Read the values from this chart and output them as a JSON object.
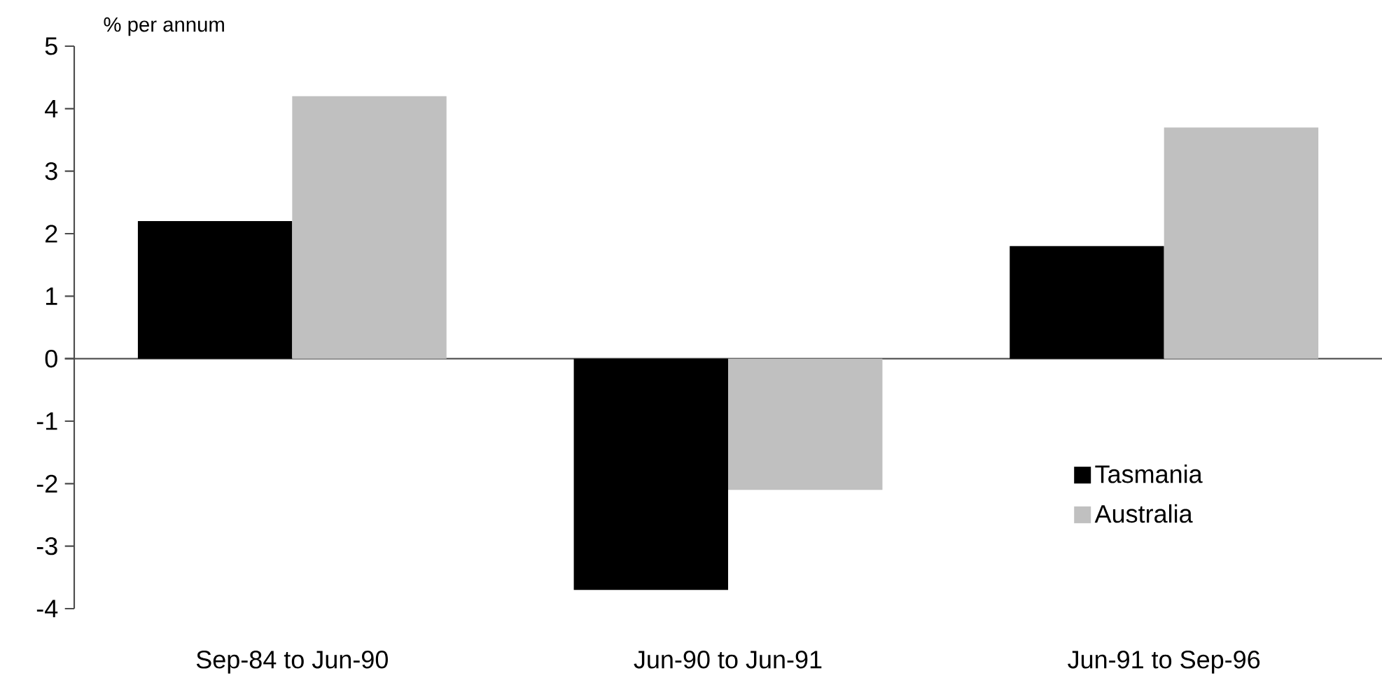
{
  "chart_data": {
    "type": "bar",
    "ylabel": "% per annum",
    "categories": [
      "Sep-84 to Jun-90",
      "Jun-90 to Jun-91",
      "Jun-91 to Sep-96"
    ],
    "series": [
      {
        "name": "Tasmania",
        "color": "#000000",
        "values": [
          2.2,
          -3.7,
          1.8
        ]
      },
      {
        "name": "Australia",
        "color": "#c0c0c0",
        "values": [
          4.2,
          -2.1,
          3.7
        ]
      }
    ],
    "ylim": [
      -4,
      5
    ],
    "yticks": [
      -4,
      -3,
      -2,
      -1,
      0,
      1,
      2,
      3,
      4,
      5
    ],
    "legend": "bottom right"
  }
}
